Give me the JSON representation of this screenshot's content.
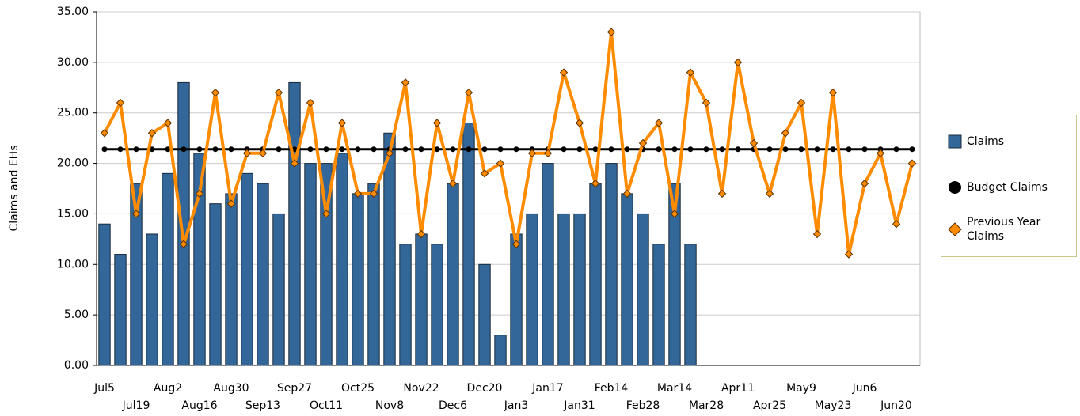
{
  "chart_data": {
    "type": "bar-line",
    "y_label": "Claims and EHs",
    "categories": [
      "Jul5",
      null,
      "Jul19",
      null,
      "Aug2",
      null,
      "Aug16",
      null,
      "Aug30",
      null,
      "Sep13",
      null,
      "Sep27",
      null,
      "Oct11",
      null,
      "Oct25",
      null,
      "Nov8",
      null,
      "Nov22",
      null,
      "Dec6",
      null,
      "Dec20",
      null,
      "Jan3",
      null,
      "Jan17",
      null,
      "Jan31",
      null,
      "Feb14",
      null,
      "Feb28",
      null,
      "Mar14",
      null,
      "Mar28",
      null,
      "Apr11",
      null,
      "Apr25",
      null,
      "May9",
      null,
      "May23",
      null,
      "Jun6",
      null,
      "Jun20",
      null
    ],
    "series": [
      {
        "name": "Claims",
        "kind": "bar",
        "color": "#336699",
        "values": [
          14,
          11,
          18,
          13,
          19,
          28,
          21,
          16,
          17,
          19,
          18,
          15,
          28,
          20,
          20,
          21,
          17,
          18,
          23,
          12,
          13,
          12,
          18,
          24,
          10,
          3,
          13,
          15,
          20,
          15,
          15,
          18,
          20,
          17,
          15,
          12,
          18,
          12,
          null,
          null,
          null,
          null,
          null,
          null,
          null,
          null,
          null,
          null,
          null,
          null,
          null,
          null
        ]
      },
      {
        "name": "Budget Claims",
        "kind": "line",
        "color": "#000000",
        "values": [
          21.4,
          21.4,
          21.4,
          21.4,
          21.4,
          21.4,
          21.4,
          21.4,
          21.4,
          21.4,
          21.4,
          21.4,
          21.4,
          21.4,
          21.4,
          21.4,
          21.4,
          21.4,
          21.4,
          21.4,
          21.4,
          21.4,
          21.4,
          21.4,
          21.4,
          21.4,
          21.4,
          21.4,
          21.4,
          21.4,
          21.4,
          21.4,
          21.4,
          21.4,
          21.4,
          21.4,
          21.4,
          21.4,
          21.4,
          21.4,
          21.4,
          21.4,
          21.4,
          21.4,
          21.4,
          21.4,
          21.4,
          21.4,
          21.4,
          21.4,
          21.4,
          21.4
        ]
      },
      {
        "name": "Previous Year Claims",
        "kind": "line",
        "color": "#ff8c00",
        "values": [
          23,
          26,
          15,
          23,
          24,
          12,
          17,
          27,
          16,
          21,
          21,
          27,
          20,
          26,
          15,
          24,
          17,
          17,
          21,
          28,
          13,
          24,
          18,
          27,
          19,
          20,
          12,
          21,
          21,
          29,
          24,
          18,
          33,
          17,
          22,
          24,
          15,
          29,
          26,
          17,
          30,
          22,
          17,
          23,
          26,
          13,
          27,
          11,
          18,
          21,
          14,
          20
        ]
      }
    ],
    "ylim": [
      0,
      35
    ],
    "yticks": [
      {
        "value": 0,
        "label": "0.00"
      },
      {
        "value": 5,
        "label": "5.00"
      },
      {
        "value": 10,
        "label": "10.00"
      },
      {
        "value": 15,
        "label": "15.00"
      },
      {
        "value": 20,
        "label": "20.00"
      },
      {
        "value": 25,
        "label": "25.00"
      },
      {
        "value": 30,
        "label": "30.00"
      },
      {
        "value": 35,
        "label": "35.00"
      }
    ],
    "grid": true
  }
}
